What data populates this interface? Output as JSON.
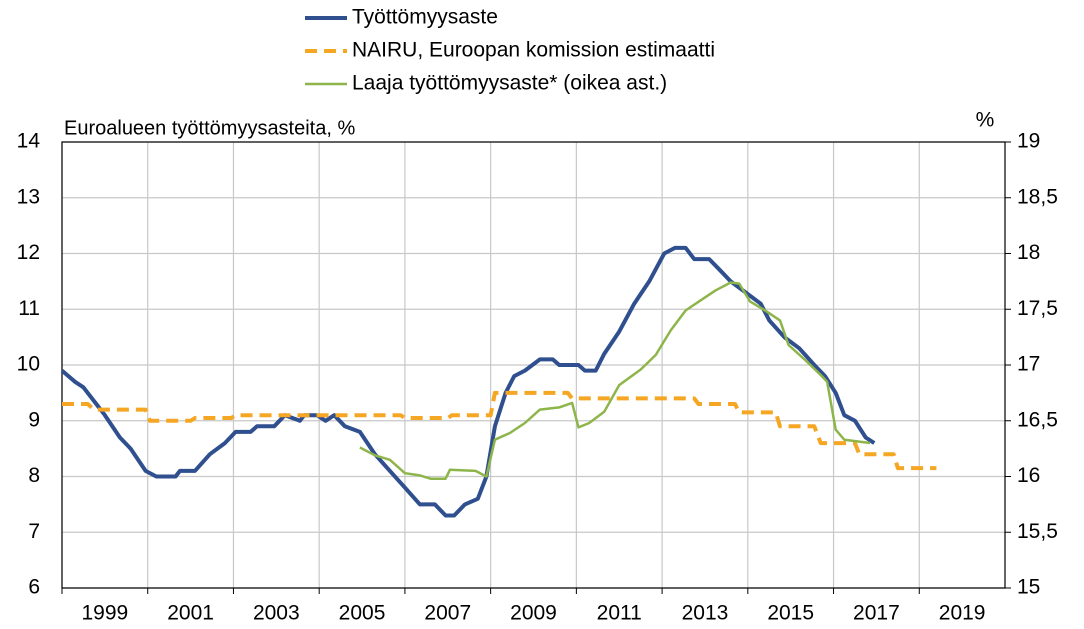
{
  "chart_data": {
    "type": "line",
    "title": "Euroalueen työttömyysasteita, %",
    "y2_label": "%",
    "xlim": [
      1999,
      2021
    ],
    "xticks": [
      1999,
      2001,
      2003,
      2005,
      2007,
      2009,
      2011,
      2013,
      2015,
      2017,
      2019
    ],
    "ylim": [
      6,
      14
    ],
    "yticks": [
      6,
      7,
      8,
      9,
      10,
      11,
      12,
      13,
      14
    ],
    "y2lim": [
      15,
      19
    ],
    "y2ticks": [
      15,
      {
        "value": 15.5,
        "label": "15,5"
      },
      16,
      {
        "value": 16.5,
        "label": "16,5"
      },
      17,
      {
        "value": 17.5,
        "label": "17,5"
      },
      18,
      {
        "value": 18.5,
        "label": "18,5"
      },
      19
    ],
    "grid": true,
    "legend": "top",
    "series": [
      {
        "name": "Työttömyysaste",
        "color": "#2f4f8f",
        "style": "solid",
        "x": [
          1999.0,
          1999.3,
          1999.5,
          1999.8,
          2000.0,
          2000.35,
          2000.6,
          2000.95,
          2001.2,
          2001.65,
          2001.75,
          2002.1,
          2002.45,
          2002.8,
          2003.05,
          2003.4,
          2003.55,
          2003.95,
          2004.2,
          2004.55,
          2004.65,
          2004.95,
          2005.15,
          2005.35,
          2005.6,
          2005.95,
          2006.3,
          2006.65,
          2007.0,
          2007.35,
          2007.7,
          2007.95,
          2008.15,
          2008.4,
          2008.7,
          2008.9,
          2009.1,
          2009.35,
          2009.55,
          2009.8,
          2010.15,
          2010.45,
          2010.6,
          2011.05,
          2011.2,
          2011.45,
          2011.65,
          2012.0,
          2012.35,
          2012.7,
          2013.05,
          2013.3,
          2013.55,
          2013.75,
          2014.1,
          2014.35,
          2014.6,
          2014.95,
          2015.3,
          2015.5,
          2015.85,
          2016.2,
          2016.55,
          2016.8,
          2017.05,
          2017.25,
          2017.5,
          2017.75,
          2017.95
        ],
        "values": [
          9.9,
          9.7,
          9.6,
          9.3,
          9.1,
          8.7,
          8.5,
          8.1,
          8.0,
          8.0,
          8.1,
          8.1,
          8.4,
          8.6,
          8.8,
          8.8,
          8.9,
          8.9,
          9.1,
          9.0,
          9.1,
          9.1,
          9.0,
          9.1,
          8.9,
          8.8,
          8.4,
          8.1,
          7.8,
          7.5,
          7.5,
          7.3,
          7.3,
          7.5,
          7.6,
          8.0,
          8.9,
          9.5,
          9.8,
          9.9,
          10.1,
          10.1,
          10.0,
          10.0,
          9.9,
          9.9,
          10.2,
          10.6,
          11.1,
          11.5,
          12.0,
          12.1,
          12.1,
          11.9,
          11.9,
          11.7,
          11.5,
          11.3,
          11.1,
          10.8,
          10.5,
          10.3,
          10.0,
          9.8,
          9.5,
          9.1,
          9.0,
          8.7,
          8.6
        ]
      },
      {
        "name": "NAIRU, Euroopan komission estimaatti",
        "color": "#f5a623",
        "style": "dashed",
        "x": [
          1999.0,
          1999.6,
          1999.75,
          2000.95,
          2001.05,
          2002.0,
          2002.1,
          2002.95,
          2003.05,
          2006.9,
          2007.0,
          2008.0,
          2008.1,
          2009.0,
          2009.1,
          2010.8,
          2010.9,
          2013.75,
          2013.85,
          2014.7,
          2014.8,
          2015.65,
          2015.75,
          2016.55,
          2016.7,
          2017.5,
          2017.6,
          2018.4,
          2018.5,
          2019.4
        ],
        "values": [
          9.3,
          9.3,
          9.2,
          9.2,
          9.0,
          9.0,
          9.05,
          9.05,
          9.1,
          9.1,
          9.05,
          9.05,
          9.1,
          9.1,
          9.5,
          9.5,
          9.4,
          9.4,
          9.3,
          9.3,
          9.15,
          9.15,
          8.9,
          8.9,
          8.6,
          8.6,
          8.4,
          8.4,
          8.15,
          8.15
        ]
      },
      {
        "name": "Laaja työttömyysaste* (oikea ast.)",
        "color": "#8db54a",
        "style": "solid",
        "axis": "y2",
        "x": [
          2005.95,
          2006.3,
          2006.65,
          2007.0,
          2007.35,
          2007.6,
          2007.95,
          2008.05,
          2008.65,
          2008.9,
          2009.1,
          2009.45,
          2009.8,
          2010.15,
          2010.6,
          2010.9,
          2011.05,
          2011.3,
          2011.65,
          2012.0,
          2012.5,
          2012.85,
          2013.2,
          2013.55,
          2013.9,
          2014.25,
          2014.6,
          2014.8,
          2015.05,
          2015.4,
          2015.75,
          2015.95,
          2016.35,
          2016.7,
          2016.85,
          2017.05,
          2017.25,
          2017.85
        ],
        "values": [
          16.26,
          16.19,
          16.15,
          16.03,
          16.01,
          15.98,
          15.98,
          16.06,
          16.05,
          16.0,
          16.33,
          16.39,
          16.48,
          16.6,
          16.62,
          16.66,
          16.44,
          16.48,
          16.58,
          16.82,
          16.96,
          17.09,
          17.31,
          17.49,
          17.58,
          17.67,
          17.74,
          17.73,
          17.57,
          17.49,
          17.4,
          17.18,
          17.04,
          16.91,
          16.85,
          16.42,
          16.33,
          16.3
        ]
      }
    ]
  }
}
